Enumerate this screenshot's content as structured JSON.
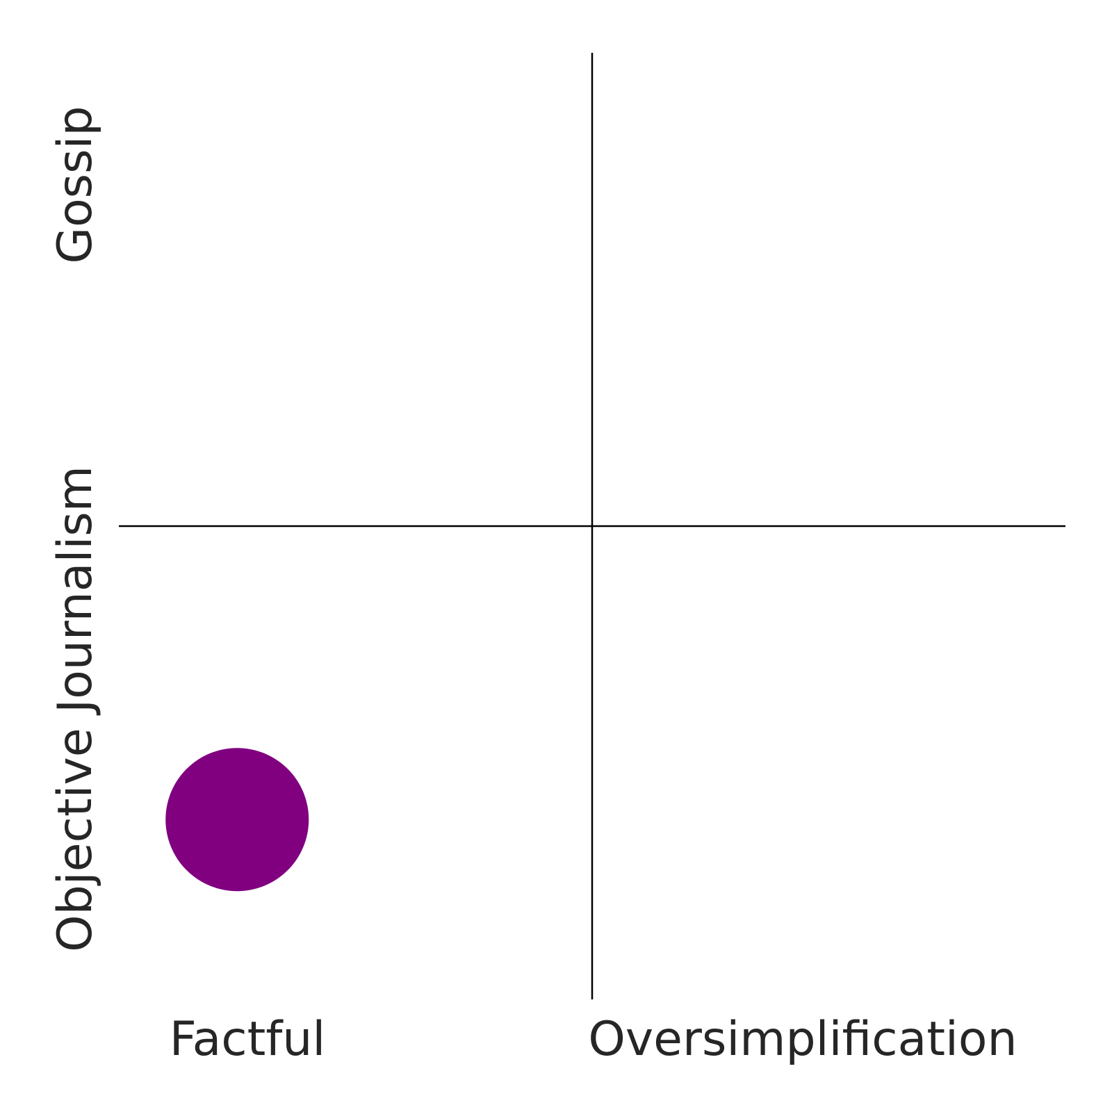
{
  "chart_data": {
    "type": "scatter",
    "x_labels": [
      "Factful",
      "Oversimplification"
    ],
    "y_labels": [
      "Objective Journalism",
      "Gossip"
    ],
    "xlim": [
      -1,
      1
    ],
    "ylim": [
      -1,
      1
    ],
    "grid": false,
    "points": [
      {
        "x": -0.75,
        "y": -0.62,
        "color": "#800080"
      }
    ],
    "axis_color": "#000000",
    "text_color": "#262626"
  }
}
